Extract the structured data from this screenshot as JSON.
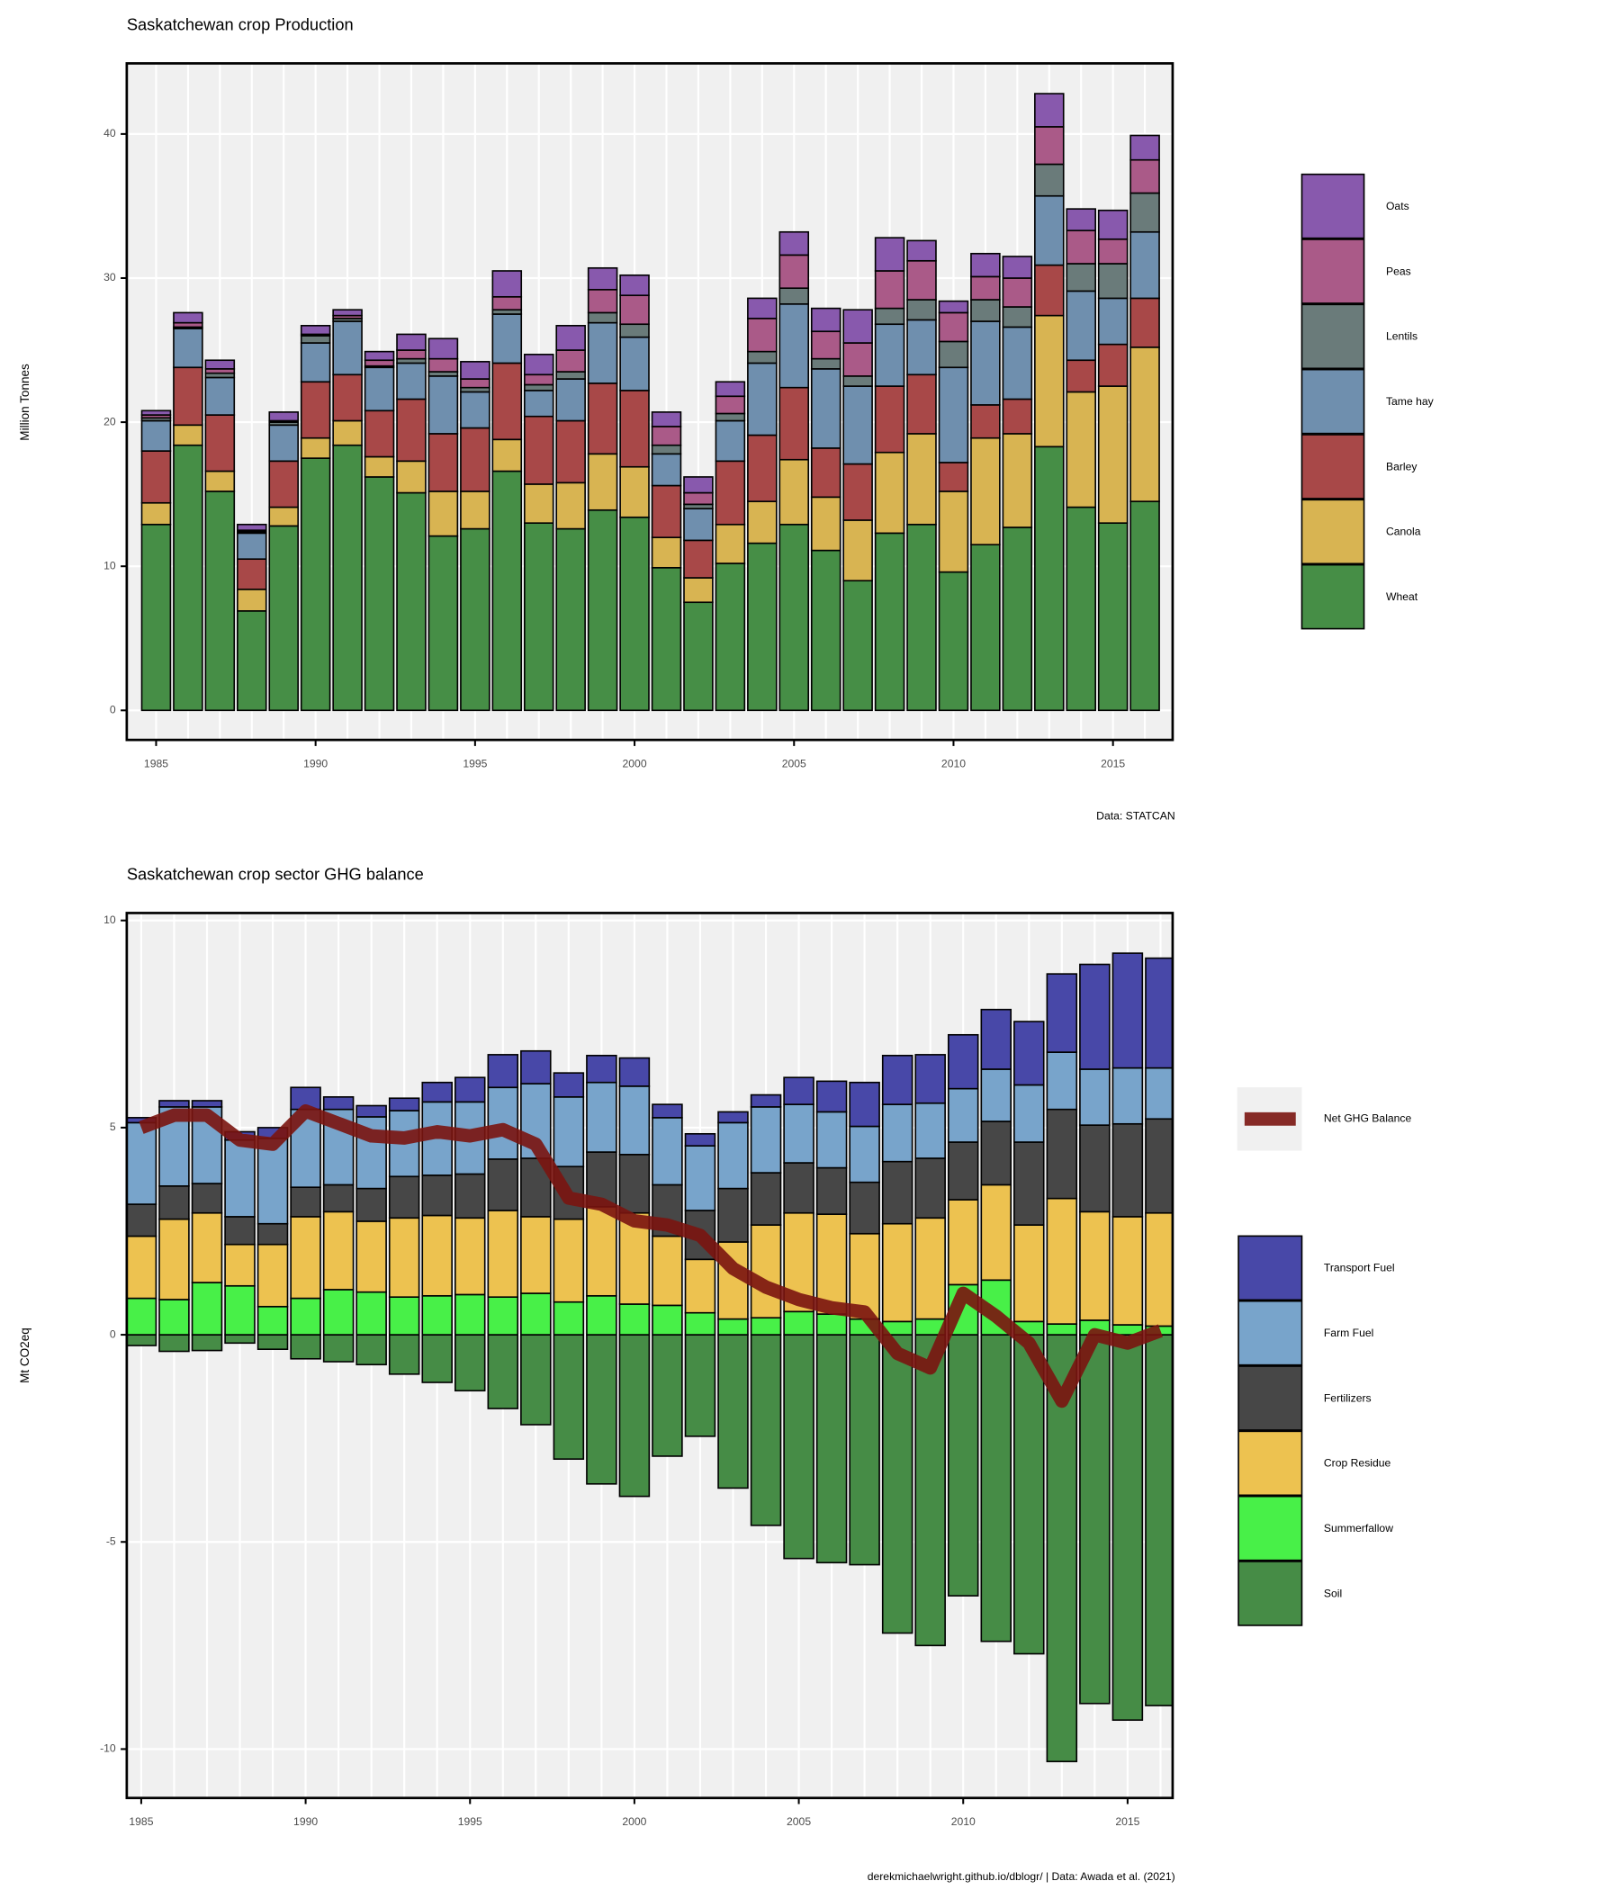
{
  "chart_data": [
    {
      "type": "bar",
      "stacked": true,
      "title": "Saskatchewan crop Production",
      "ylabel": "Million Tonnes",
      "caption": "Data: STATCAN",
      "x": [
        1985,
        1986,
        1987,
        1988,
        1989,
        1990,
        1991,
        1992,
        1993,
        1994,
        1995,
        1996,
        1997,
        1998,
        1999,
        2000,
        2001,
        2002,
        2003,
        2004,
        2005,
        2006,
        2007,
        2008,
        2009,
        2010,
        2011,
        2012,
        2013,
        2014,
        2015,
        2016
      ],
      "xlim": [
        1984.08,
        2016.87
      ],
      "xticks": [
        1985,
        1990,
        1995,
        2000,
        2005,
        2010,
        2015
      ],
      "ylim": [
        -2.05,
        44.9
      ],
      "yticks": [
        0,
        10,
        20,
        30,
        40
      ],
      "grid": true,
      "series": [
        {
          "name": "Wheat",
          "color": "#468e46",
          "values": [
            12.9,
            18.4,
            15.2,
            6.9,
            12.8,
            17.5,
            18.4,
            16.2,
            15.1,
            12.1,
            12.6,
            16.6,
            13.0,
            12.6,
            13.9,
            13.4,
            9.9,
            7.5,
            10.2,
            11.6,
            12.9,
            11.1,
            9.0,
            12.3,
            12.9,
            9.6,
            11.5,
            12.7,
            18.3,
            14.1,
            13.0,
            14.5
          ]
        },
        {
          "name": "Canola",
          "color": "#d8b452",
          "values": [
            1.5,
            1.4,
            1.4,
            1.5,
            1.3,
            1.4,
            1.7,
            1.4,
            2.2,
            3.1,
            2.6,
            2.2,
            2.7,
            3.2,
            3.9,
            3.5,
            2.1,
            1.7,
            2.7,
            2.9,
            4.5,
            3.7,
            4.2,
            5.6,
            6.3,
            5.6,
            7.4,
            6.5,
            9.1,
            8.0,
            9.5,
            10.7
          ]
        },
        {
          "name": "Barley",
          "color": "#a84848",
          "values": [
            3.6,
            4.0,
            3.9,
            2.1,
            3.2,
            3.9,
            3.2,
            3.2,
            4.3,
            4.0,
            4.4,
            5.3,
            4.7,
            4.3,
            4.9,
            5.3,
            3.6,
            2.6,
            4.4,
            4.6,
            5.0,
            3.4,
            3.9,
            4.6,
            4.1,
            2.0,
            2.3,
            2.4,
            3.5,
            2.2,
            2.9,
            3.4
          ]
        },
        {
          "name": "Tame hay",
          "color": "#6f8fae",
          "values": [
            2.1,
            2.7,
            2.6,
            1.8,
            2.5,
            2.7,
            3.7,
            3.0,
            2.5,
            4.0,
            2.5,
            3.4,
            1.8,
            2.9,
            4.2,
            3.7,
            2.2,
            2.2,
            2.8,
            5.0,
            5.8,
            5.5,
            5.4,
            4.3,
            3.8,
            6.6,
            5.8,
            5.0,
            4.8,
            4.8,
            3.2,
            4.6
          ]
        },
        {
          "name": "Lentils",
          "color": "#6a7b7a",
          "values": [
            0.2,
            0.1,
            0.3,
            0.1,
            0.2,
            0.5,
            0.2,
            0.1,
            0.3,
            0.3,
            0.3,
            0.3,
            0.4,
            0.5,
            0.7,
            0.9,
            0.6,
            0.3,
            0.5,
            0.8,
            1.1,
            0.7,
            0.7,
            1.1,
            1.4,
            1.8,
            1.5,
            1.4,
            2.2,
            1.9,
            2.4,
            2.7
          ]
        },
        {
          "name": "Peas",
          "color": "#aa5a88",
          "values": [
            0.2,
            0.3,
            0.3,
            0.1,
            0.1,
            0.1,
            0.2,
            0.4,
            0.6,
            0.9,
            0.6,
            0.9,
            0.7,
            1.5,
            1.6,
            2.0,
            1.3,
            0.8,
            1.2,
            2.3,
            2.3,
            1.9,
            2.3,
            2.6,
            2.7,
            2.0,
            1.6,
            2.0,
            2.6,
            2.3,
            1.7,
            2.3
          ]
        },
        {
          "name": "Oats",
          "color": "#8859ad",
          "values": [
            0.3,
            0.7,
            0.6,
            0.4,
            0.6,
            0.6,
            0.4,
            0.6,
            1.1,
            1.4,
            1.2,
            1.8,
            1.4,
            1.7,
            1.5,
            1.4,
            1.0,
            1.1,
            1.0,
            1.4,
            1.6,
            1.6,
            2.3,
            2.3,
            1.4,
            0.8,
            1.6,
            1.5,
            2.3,
            1.5,
            2.0,
            1.7
          ]
        }
      ]
    },
    {
      "type": "bar",
      "stacked": true,
      "title": "Saskatchewan crop sector GHG balance",
      "ylabel": "Mt CO2eq",
      "caption": "derekmichaelwright.github.io/dblogr/ | Data: Awada et al. (2021)",
      "x": [
        1985,
        1986,
        1987,
        1988,
        1989,
        1990,
        1991,
        1992,
        1993,
        1994,
        1995,
        1996,
        1997,
        1998,
        1999,
        2000,
        2001,
        2002,
        2003,
        2004,
        2005,
        2006,
        2007,
        2008,
        2009,
        2010,
        2011,
        2012,
        2013,
        2014,
        2015,
        2016
      ],
      "xlim": [
        1984.56,
        2016.37
      ],
      "xticks": [
        1985,
        1990,
        1995,
        2000,
        2005,
        2010,
        2015
      ],
      "ylim": [
        -11.18,
        10.18
      ],
      "yticks": [
        -10,
        -5,
        0,
        5,
        10
      ],
      "grid": true,
      "series": [
        {
          "name": "Soil",
          "color": "#468c46",
          "values": [
            -0.26,
            -0.4,
            -0.38,
            -0.2,
            -0.35,
            -0.58,
            -0.65,
            -0.72,
            -0.95,
            -1.15,
            -1.35,
            -1.78,
            -2.17,
            -3.0,
            -3.6,
            -3.9,
            -2.93,
            -2.45,
            -3.7,
            -4.6,
            -5.4,
            -5.5,
            -5.55,
            -7.2,
            -7.5,
            -6.3,
            -7.4,
            -7.7,
            -10.3,
            -8.9,
            -9.3,
            -8.95
          ]
        },
        {
          "name": "Summerfallow",
          "color": "#48f048",
          "values": [
            0.88,
            0.85,
            1.26,
            1.18,
            0.68,
            0.88,
            1.09,
            1.03,
            0.91,
            0.94,
            0.97,
            0.91,
            1.0,
            0.79,
            0.94,
            0.74,
            0.71,
            0.53,
            0.38,
            0.41,
            0.56,
            0.5,
            0.38,
            0.32,
            0.38,
            1.21,
            1.32,
            0.32,
            0.26,
            0.35,
            0.24,
            0.21
          ]
        },
        {
          "name": "Crop Residue",
          "color": "#edc250",
          "values": [
            1.5,
            1.94,
            1.68,
            1.0,
            1.5,
            1.97,
            1.88,
            1.71,
            1.91,
            1.94,
            1.85,
            2.09,
            1.85,
            2.0,
            2.15,
            2.2,
            1.67,
            1.29,
            1.86,
            2.24,
            2.38,
            2.41,
            2.06,
            2.36,
            2.44,
            2.05,
            2.3,
            2.33,
            3.03,
            2.62,
            2.61,
            2.73
          ]
        },
        {
          "name": "Fertilizers",
          "color": "#474747",
          "values": [
            0.77,
            0.8,
            0.71,
            0.67,
            0.5,
            0.71,
            0.65,
            0.79,
            1.0,
            0.97,
            1.06,
            1.24,
            1.41,
            1.27,
            1.32,
            1.41,
            1.24,
            1.18,
            1.29,
            1.26,
            1.21,
            1.12,
            1.24,
            1.5,
            1.44,
            1.39,
            1.53,
            2.0,
            2.15,
            2.09,
            2.24,
            2.27
          ]
        },
        {
          "name": "Farm Fuel",
          "color": "#78a4cb",
          "values": [
            1.97,
            1.91,
            1.85,
            1.85,
            2.06,
            1.88,
            1.82,
            1.73,
            1.59,
            1.77,
            1.74,
            1.73,
            1.8,
            1.68,
            1.68,
            1.65,
            1.62,
            1.56,
            1.59,
            1.59,
            1.41,
            1.35,
            1.35,
            1.38,
            1.33,
            1.29,
            1.26,
            1.38,
            1.38,
            1.35,
            1.35,
            1.23
          ]
        },
        {
          "name": "Transport Fuel",
          "color": "#4848a8",
          "values": [
            0.12,
            0.15,
            0.15,
            0.2,
            0.26,
            0.53,
            0.3,
            0.27,
            0.3,
            0.47,
            0.59,
            0.79,
            0.79,
            0.58,
            0.65,
            0.68,
            0.32,
            0.29,
            0.26,
            0.29,
            0.65,
            0.74,
            1.06,
            1.18,
            1.17,
            1.3,
            1.44,
            1.53,
            1.89,
            2.53,
            2.77,
            2.65
          ]
        }
      ],
      "line": {
        "name": "Net GHG Balance",
        "color": "#7a1410",
        "values": [
          5.0,
          5.3,
          5.3,
          4.7,
          4.6,
          5.4,
          5.1,
          4.8,
          4.75,
          4.9,
          4.8,
          4.95,
          4.6,
          3.3,
          3.15,
          2.75,
          2.65,
          2.4,
          1.6,
          1.15,
          0.85,
          0.65,
          0.55,
          -0.45,
          -0.8,
          1.0,
          0.45,
          -0.2,
          -1.6,
          0.0,
          -0.2,
          0.1
        ]
      }
    }
  ]
}
